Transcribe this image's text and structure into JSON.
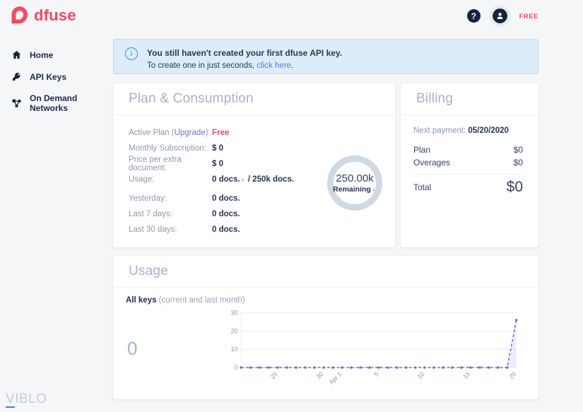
{
  "brand": {
    "name": "dfuse",
    "color": "#fa4860"
  },
  "header": {
    "help_label": "?",
    "plan_badge": "FREE"
  },
  "sidebar": {
    "items": [
      {
        "label": "Home",
        "icon": "home-icon"
      },
      {
        "label": "API Keys",
        "icon": "key-icon"
      },
      {
        "label": "On Demand Networks",
        "icon": "network-icon"
      }
    ]
  },
  "banner": {
    "info_glyph": "i",
    "line1": "You still haven't created your first dfuse API key.",
    "line2_prefix": "To create one in just seconds, ",
    "link": "click here",
    "line2_suffix": "."
  },
  "plan_card": {
    "title": "Plan & Consumption",
    "rows": [
      {
        "label_prefix": "Active Plan (",
        "link": "Upgrade",
        "label_suffix": "):",
        "value": "Free"
      },
      {
        "label": "Monthly Subscription:",
        "value": "$ 0"
      },
      {
        "label": "Price per extra document:",
        "value": "$ 0"
      },
      {
        "label": "Usage:",
        "value_before": "0 docs.",
        "value_arrow": "↓",
        "value_after": " / 250k docs."
      },
      {
        "label": "Yesterday:",
        "value": "0 docs."
      },
      {
        "label": "Last 7 days:",
        "value": "0 docs."
      },
      {
        "label": "Last 30 days:",
        "value": "0 docs."
      }
    ],
    "gauge": {
      "value": "250.00k",
      "label": "Remaining",
      "arrow": "↓"
    }
  },
  "billing_card": {
    "title": "Billing",
    "next_payment_label": "Next payment: ",
    "next_payment_value": "05/20/2020",
    "rows": [
      {
        "label": "Plan",
        "value": "$0"
      },
      {
        "label": "Overages",
        "value": "$0"
      }
    ],
    "total_label": "Total",
    "total_value": "$0"
  },
  "usage_card": {
    "title": "Usage",
    "series_name": "All keys",
    "series_note": " (current and last month)",
    "big_value": "0"
  },
  "chart_data": {
    "type": "line",
    "title": "All keys (current and last month)",
    "values": [
      0,
      0,
      0,
      0,
      0,
      0,
      0,
      0,
      0,
      0,
      0,
      0,
      0,
      0,
      0,
      0,
      0,
      0,
      0,
      0,
      0,
      0,
      0,
      0,
      0,
      0,
      0,
      0,
      0,
      0,
      26
    ],
    "x_tick_labels": [
      {
        "index": 4,
        "label": "25"
      },
      {
        "index": 9,
        "label": "30"
      },
      {
        "index": 11,
        "label": "Apr 1"
      },
      {
        "index": 15,
        "label": "5"
      },
      {
        "index": 20,
        "label": "10"
      },
      {
        "index": 25,
        "label": "15"
      },
      {
        "index": 30,
        "label": "20"
      }
    ],
    "y_ticks": [
      0,
      10,
      20,
      30
    ],
    "ylim": [
      0,
      30
    ],
    "line_color": "#6274cf",
    "line_style": "dashed",
    "marker": "circle",
    "fill_color": "rgba(98,116,207,0.13)",
    "grid_color": "#e9ebf1",
    "tick_label_color": "#8a93a6",
    "legend_position": "none"
  },
  "watermark": {
    "first_letter": "V",
    "rest": "IBLO"
  }
}
